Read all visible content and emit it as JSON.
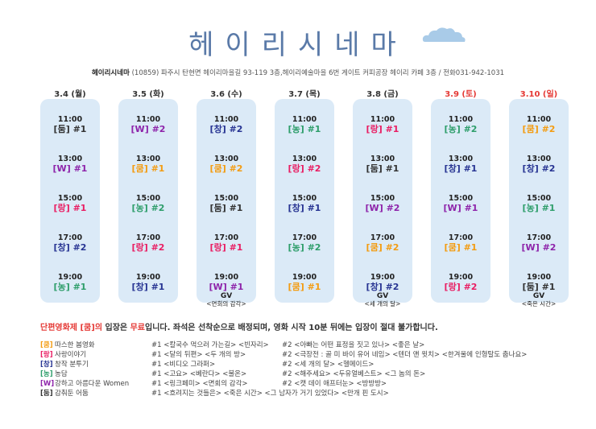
{
  "title": "헤이리시네마",
  "subinfo": {
    "name": "헤이리시네마",
    "address": "(10859) 파주시 탄현면 헤이리마을길 93-119 3층,헤이리예술마을 6번 게이트 커피공장 헤이리 카페 3층 / 전화031-942-1031"
  },
  "colors": {
    "쿰": "#f39c12",
    "W": "#8e24aa",
    "랑": "#e91e63",
    "창": "#283593",
    "농": "#2e9e6b",
    "둠": "#333333",
    "weekend": "#e53935",
    "column_bg": "#dbeaf7",
    "title": "#5a7aa8"
  },
  "days": [
    {
      "date": "3.4 (월)",
      "weekend": false,
      "slots": [
        {
          "time": "11:00",
          "tag": "[둠]",
          "num": "#1",
          "code": "둠"
        },
        {
          "time": "13:00",
          "tag": "[W]",
          "num": "#1",
          "code": "W"
        },
        {
          "time": "15:00",
          "tag": "[랑]",
          "num": "#1",
          "code": "랑"
        },
        {
          "time": "17:00",
          "tag": "[창]",
          "num": "#2",
          "code": "창"
        },
        {
          "time": "19:00",
          "tag": "[농]",
          "num": "#1",
          "code": "농"
        }
      ]
    },
    {
      "date": "3.5 (화)",
      "weekend": false,
      "slots": [
        {
          "time": "11:00",
          "tag": "[W]",
          "num": "#2",
          "code": "W"
        },
        {
          "time": "13:00",
          "tag": "[쿰]",
          "num": "#1",
          "code": "쿰"
        },
        {
          "time": "15:00",
          "tag": "[농]",
          "num": "#2",
          "code": "농"
        },
        {
          "time": "17:00",
          "tag": "[랑]",
          "num": "#2",
          "code": "랑"
        },
        {
          "time": "19:00",
          "tag": "[창]",
          "num": "#1",
          "code": "창"
        }
      ]
    },
    {
      "date": "3.6 (수)",
      "weekend": false,
      "slots": [
        {
          "time": "11:00",
          "tag": "[창]",
          "num": "#2",
          "code": "창"
        },
        {
          "time": "13:00",
          "tag": "[쿰]",
          "num": "#2",
          "code": "쿰"
        },
        {
          "time": "15:00",
          "tag": "[둠]",
          "num": "#1",
          "code": "둠"
        },
        {
          "time": "17:00",
          "tag": "[랑]",
          "num": "#1",
          "code": "랑"
        },
        {
          "time": "19:00",
          "tag": "[W]",
          "num": "#1",
          "code": "W",
          "gv": "GV",
          "note": "<면회의 감각>"
        }
      ]
    },
    {
      "date": "3.7 (목)",
      "weekend": false,
      "slots": [
        {
          "time": "11:00",
          "tag": "[농]",
          "num": "#1",
          "code": "농"
        },
        {
          "time": "13:00",
          "tag": "[랑]",
          "num": "#2",
          "code": "랑"
        },
        {
          "time": "15:00",
          "tag": "[창]",
          "num": "#1",
          "code": "창"
        },
        {
          "time": "17:00",
          "tag": "[농]",
          "num": "#2",
          "code": "농"
        },
        {
          "time": "19:00",
          "tag": "[쿰]",
          "num": "#1",
          "code": "쿰"
        }
      ]
    },
    {
      "date": "3.8 (금)",
      "weekend": false,
      "slots": [
        {
          "time": "11:00",
          "tag": "[랑]",
          "num": "#1",
          "code": "랑"
        },
        {
          "time": "13:00",
          "tag": "[둠]",
          "num": "#1",
          "code": "둠"
        },
        {
          "time": "15:00",
          "tag": "[W]",
          "num": "#2",
          "code": "W"
        },
        {
          "time": "17:00",
          "tag": "[쿰]",
          "num": "#2",
          "code": "쿰"
        },
        {
          "time": "19:00",
          "tag": "[창]",
          "num": "#2",
          "code": "창",
          "gv": "GV",
          "note": "<세 개의 달>"
        }
      ]
    },
    {
      "date": "3.9 (토)",
      "weekend": true,
      "slots": [
        {
          "time": "11:00",
          "tag": "[농]",
          "num": "#2",
          "code": "농"
        },
        {
          "time": "13:00",
          "tag": "[창]",
          "num": "#1",
          "code": "창"
        },
        {
          "time": "15:00",
          "tag": "[W]",
          "num": "#1",
          "code": "W"
        },
        {
          "time": "17:00",
          "tag": "[쿰]",
          "num": "#1",
          "code": "쿰"
        },
        {
          "time": "19:00",
          "tag": "[랑]",
          "num": "#2",
          "code": "랑"
        }
      ]
    },
    {
      "date": "3.10 (일)",
      "weekend": true,
      "slots": [
        {
          "time": "11:00",
          "tag": "[쿰]",
          "num": "#2",
          "code": "쿰"
        },
        {
          "time": "13:00",
          "tag": "[창]",
          "num": "#2",
          "code": "창"
        },
        {
          "time": "15:00",
          "tag": "[농]",
          "num": "#1",
          "code": "농"
        },
        {
          "time": "17:00",
          "tag": "[W]",
          "num": "#2",
          "code": "W"
        },
        {
          "time": "19:00",
          "tag": "[둠]",
          "num": "#1",
          "code": "둠",
          "gv": "GV",
          "note": "<죽은 시간>"
        }
      ]
    }
  ],
  "notice": {
    "part1": "단편영화제 [쿰]의",
    "part2": " 입장은 ",
    "part3": "무료",
    "part4": "입니다. 좌석은 선착순으로 배정되며, 영화 시작 10분 뒤에는 입장이 절대 불가합니다."
  },
  "legend": [
    {
      "tag": "[쿰]",
      "code": "쿰",
      "name": "따스한 봄영화",
      "f1": "#1 <칼국수 먹으러 가는길> <빈자리>",
      "f2": "#2 <아빠는 어떤 표정을 짓고 있나> <좋은 날>"
    },
    {
      "tag": "[랑]",
      "code": "랑",
      "name": "사랑이야기",
      "f1": "#1 <달의 뒤편> <두 개의 방>",
      "f2": "#2 <극장전 : 골 미 바이 유어 네임> <텐더 앤 윗치> <한겨울에 인형탈도 춥나요>"
    },
    {
      "tag": "[창]",
      "code": "창",
      "name": "창작 분투기",
      "f1": "#1 <비디오 그라퍼>",
      "f2": "#2 <세 개의 달> <헬메이드>"
    },
    {
      "tag": "[농]",
      "code": "농",
      "name": "농담",
      "f1": "#1 <고요> <베란다> <불온>",
      "f2": "#2 <해주세요> <두유얼베스트> <그 놈의 돈>"
    },
    {
      "tag": "[W]",
      "code": "W",
      "name": "강하고 아름다운 Women",
      "f1": "#1 <링크페미> <면회의 감각>",
      "f2": "#2 <캣 데이 애프터눈> <방방방>"
    },
    {
      "tag": "[둠]",
      "code": "둠",
      "name": "감춰둔 어둠",
      "f1": "#1 <흐려지는 것들은> <죽은 시간> <그 남자가 거기 있었다> <만개 핀 도시>",
      "f2": ""
    }
  ]
}
